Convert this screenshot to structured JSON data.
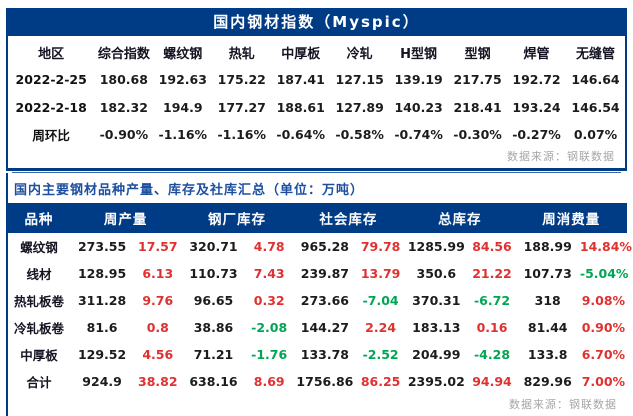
{
  "colors": {
    "navy": "#003b85",
    "red": "#e03131",
    "green": "#00a651",
    "title_blue": "#1d4fa1",
    "source_gray": "#a6a6a6"
  },
  "myspic": {
    "title": "国内钢材指数（Myspic）",
    "headers": [
      "地区",
      "综合指数",
      "螺纹钢",
      "热轧",
      "中厚板",
      "冷轧",
      "H型钢",
      "型钢",
      "焊管",
      "无缝管"
    ],
    "rows": [
      {
        "label": "2022-2-25",
        "values": [
          "180.68",
          "192.63",
          "175.22",
          "187.41",
          "127.15",
          "139.19",
          "217.75",
          "192.72",
          "146.64"
        ]
      },
      {
        "label": "2022-2-18",
        "values": [
          "182.32",
          "194.9",
          "177.27",
          "188.61",
          "127.89",
          "140.23",
          "218.41",
          "193.24",
          "146.54"
        ]
      }
    ],
    "wow": {
      "label": "周环比",
      "values": [
        {
          "text": "-0.90%",
          "color": "green"
        },
        {
          "text": "-1.16%",
          "color": "green"
        },
        {
          "text": "-1.16%",
          "color": "green"
        },
        {
          "text": "-0.64%",
          "color": "green"
        },
        {
          "text": "-0.58%",
          "color": "green"
        },
        {
          "text": "-0.74%",
          "color": "green"
        },
        {
          "text": "-0.30%",
          "color": "green"
        },
        {
          "text": "-0.27%",
          "color": "green"
        },
        {
          "text": "0.07%",
          "color": "red"
        }
      ]
    },
    "source": "数据来源：钢联数据"
  },
  "inventory": {
    "title": "国内主要钢材品种产量、库存及社库汇总（单位：万吨）",
    "headers": [
      "品种",
      "周产量",
      "钢厂库存",
      "社会库存",
      "总库存",
      "周消费量"
    ],
    "rows": [
      {
        "name": "螺纹钢",
        "cells": [
          {
            "v": "273.55",
            "d": "17.57",
            "c": "red"
          },
          {
            "v": "320.71",
            "d": "4.78",
            "c": "red"
          },
          {
            "v": "965.28",
            "d": "79.78",
            "c": "red"
          },
          {
            "v": "1285.99",
            "d": "84.56",
            "c": "red"
          },
          {
            "v": "188.99",
            "d": "14.84%",
            "c": "red"
          }
        ]
      },
      {
        "name": "线材",
        "cells": [
          {
            "v": "128.95",
            "d": "6.13",
            "c": "red"
          },
          {
            "v": "110.73",
            "d": "7.43",
            "c": "red"
          },
          {
            "v": "239.87",
            "d": "13.79",
            "c": "red"
          },
          {
            "v": "350.6",
            "d": "21.22",
            "c": "red"
          },
          {
            "v": "107.73",
            "d": "-5.04%",
            "c": "green"
          }
        ]
      },
      {
        "name": "热轧板卷",
        "cells": [
          {
            "v": "311.28",
            "d": "9.76",
            "c": "red"
          },
          {
            "v": "96.65",
            "d": "0.32",
            "c": "red"
          },
          {
            "v": "273.66",
            "d": "-7.04",
            "c": "green"
          },
          {
            "v": "370.31",
            "d": "-6.72",
            "c": "green"
          },
          {
            "v": "318",
            "d": "9.08%",
            "c": "red"
          }
        ]
      },
      {
        "name": "冷轧板卷",
        "cells": [
          {
            "v": "81.6",
            "d": "0.8",
            "c": "red"
          },
          {
            "v": "38.86",
            "d": "-2.08",
            "c": "green"
          },
          {
            "v": "144.27",
            "d": "2.24",
            "c": "red"
          },
          {
            "v": "183.13",
            "d": "0.16",
            "c": "red"
          },
          {
            "v": "81.44",
            "d": "0.90%",
            "c": "red"
          }
        ]
      },
      {
        "name": "中厚板",
        "cells": [
          {
            "v": "129.52",
            "d": "4.56",
            "c": "red"
          },
          {
            "v": "71.21",
            "d": "-1.76",
            "c": "green"
          },
          {
            "v": "133.78",
            "d": "-2.52",
            "c": "green"
          },
          {
            "v": "204.99",
            "d": "-4.28",
            "c": "green"
          },
          {
            "v": "133.8",
            "d": "6.70%",
            "c": "red"
          }
        ]
      },
      {
        "name": "合计",
        "cells": [
          {
            "v": "924.9",
            "d": "38.82",
            "c": "red"
          },
          {
            "v": "638.16",
            "d": "8.69",
            "c": "red"
          },
          {
            "v": "1756.86",
            "d": "86.25",
            "c": "red"
          },
          {
            "v": "2395.02",
            "d": "94.94",
            "c": "red"
          },
          {
            "v": "829.96",
            "d": "7.00%",
            "c": "red"
          }
        ]
      }
    ],
    "source": "数据来源：钢联数据"
  }
}
